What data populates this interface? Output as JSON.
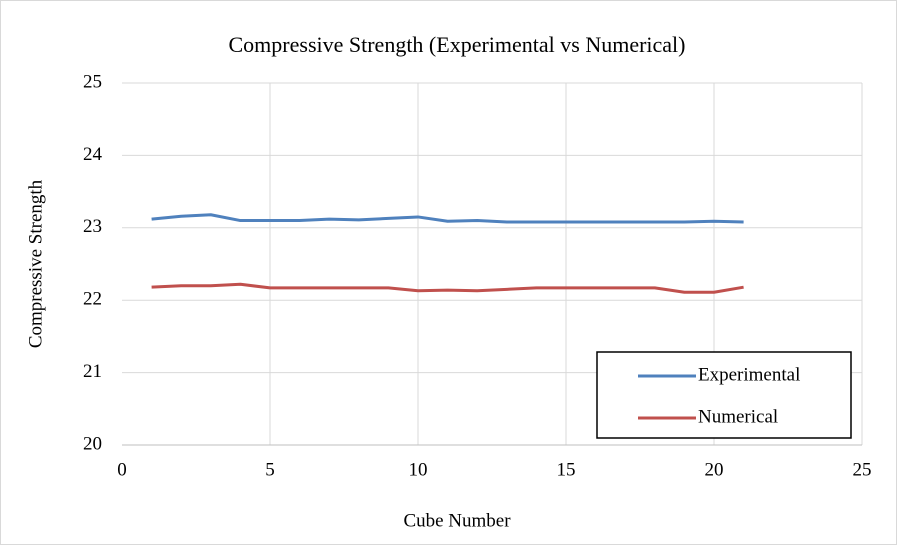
{
  "chart_data": {
    "type": "line",
    "title": "Compressive Strength (Experimental vs Numerical)",
    "x_label": "Cube Number",
    "y_label": "Compressive Strength",
    "x": [
      1,
      2,
      3,
      4,
      5,
      6,
      7,
      8,
      9,
      10,
      11,
      12,
      13,
      14,
      15,
      16,
      17,
      18,
      19,
      20,
      21
    ],
    "series": [
      {
        "name": "Experimental",
        "color": "#4f81bd",
        "values": [
          23.12,
          23.16,
          23.18,
          23.1,
          23.1,
          23.1,
          23.12,
          23.11,
          23.13,
          23.15,
          23.09,
          23.1,
          23.08,
          23.08,
          23.08,
          23.08,
          23.08,
          23.08,
          23.08,
          23.09,
          23.08
        ]
      },
      {
        "name": "Numerical",
        "color": "#c0504d",
        "values": [
          22.18,
          22.2,
          22.2,
          22.22,
          22.17,
          22.17,
          22.17,
          22.17,
          22.17,
          22.13,
          22.14,
          22.13,
          22.15,
          22.17,
          22.17,
          22.17,
          22.17,
          22.17,
          22.11,
          22.11,
          22.18
        ]
      }
    ],
    "xlim": [
      0,
      25
    ],
    "xticks": [
      0,
      5,
      10,
      15,
      20,
      25
    ],
    "ylim": [
      20,
      25
    ],
    "yticks": [
      20,
      21,
      22,
      23,
      24,
      25
    ],
    "grid": true,
    "legend": "lower right"
  }
}
